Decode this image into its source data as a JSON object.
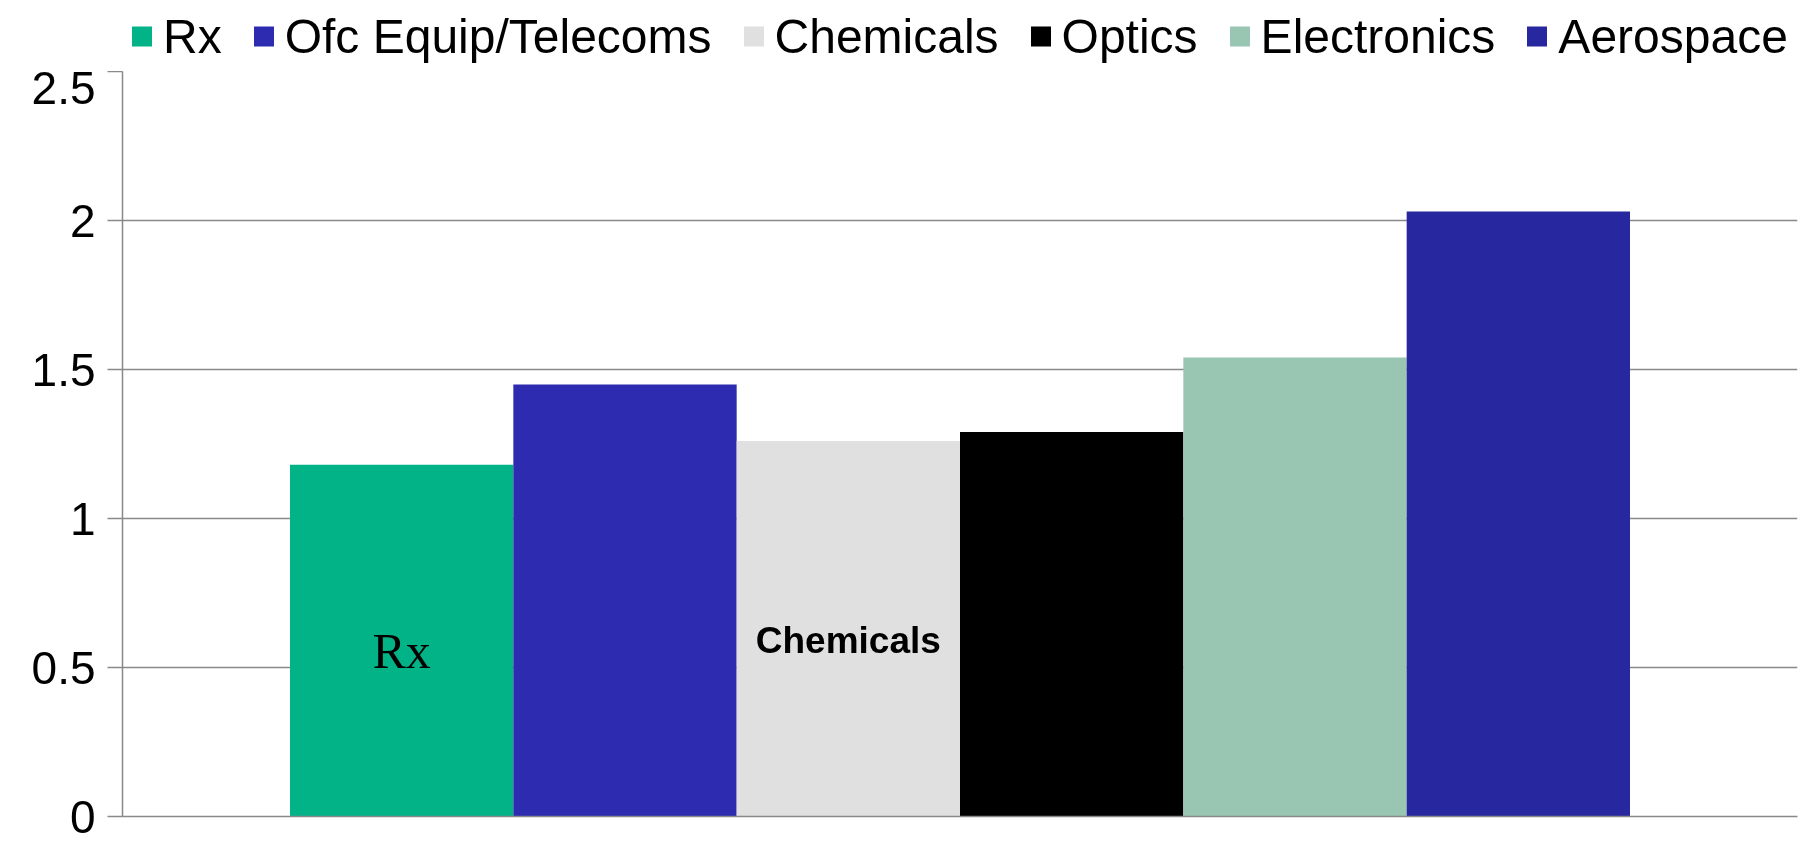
{
  "chart_data": {
    "type": "bar",
    "categories": [
      null
    ],
    "series": [
      {
        "name": "Rx",
        "color": "#02b388",
        "values": [
          1.18
        ],
        "value_labels": [
          "Rx"
        ]
      },
      {
        "name": "Ofc Equip/Telecoms",
        "color": "#2d2bb0",
        "values": [
          1.45
        ]
      },
      {
        "name": "Chemicals",
        "color": "#e0e0e0",
        "values": [
          1.26
        ],
        "value_labels": [
          "Chemicals"
        ]
      },
      {
        "name": "Optics",
        "color": "#000000",
        "values": [
          1.29
        ]
      },
      {
        "name": "Electronics",
        "color": "#98c6b2",
        "values": [
          1.54
        ]
      },
      {
        "name": "Aerospace",
        "color": "#2727a0",
        "values": [
          2.03
        ]
      }
    ],
    "ylim": [
      0,
      2.5
    ],
    "yticks": [
      0,
      0.5,
      1,
      1.5,
      2,
      2.5
    ],
    "grid": "y",
    "legend": "top",
    "tick_labels": "y"
  }
}
